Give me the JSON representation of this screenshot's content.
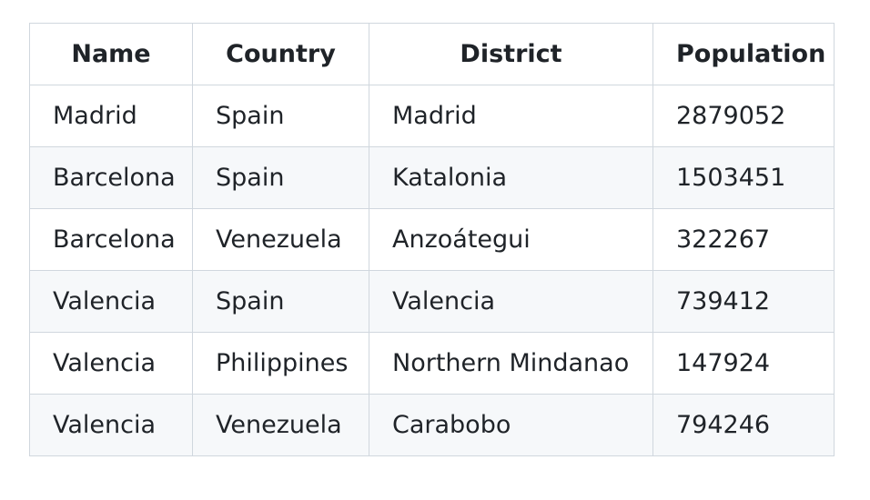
{
  "table": {
    "headers": [
      "Name",
      "Country",
      "District",
      "Population"
    ],
    "rows": [
      [
        "Madrid",
        "Spain",
        "Madrid",
        "2879052"
      ],
      [
        "Barcelona",
        "Spain",
        "Katalonia",
        "1503451"
      ],
      [
        "Barcelona",
        "Venezuela",
        "Anzoátegui",
        "322267"
      ],
      [
        "Valencia",
        "Spain",
        "Valencia",
        "739412"
      ],
      [
        "Valencia",
        "Philippines",
        "Northern Mindanao",
        "147924"
      ],
      [
        "Valencia",
        "Venezuela",
        "Carabobo",
        "794246"
      ]
    ]
  }
}
